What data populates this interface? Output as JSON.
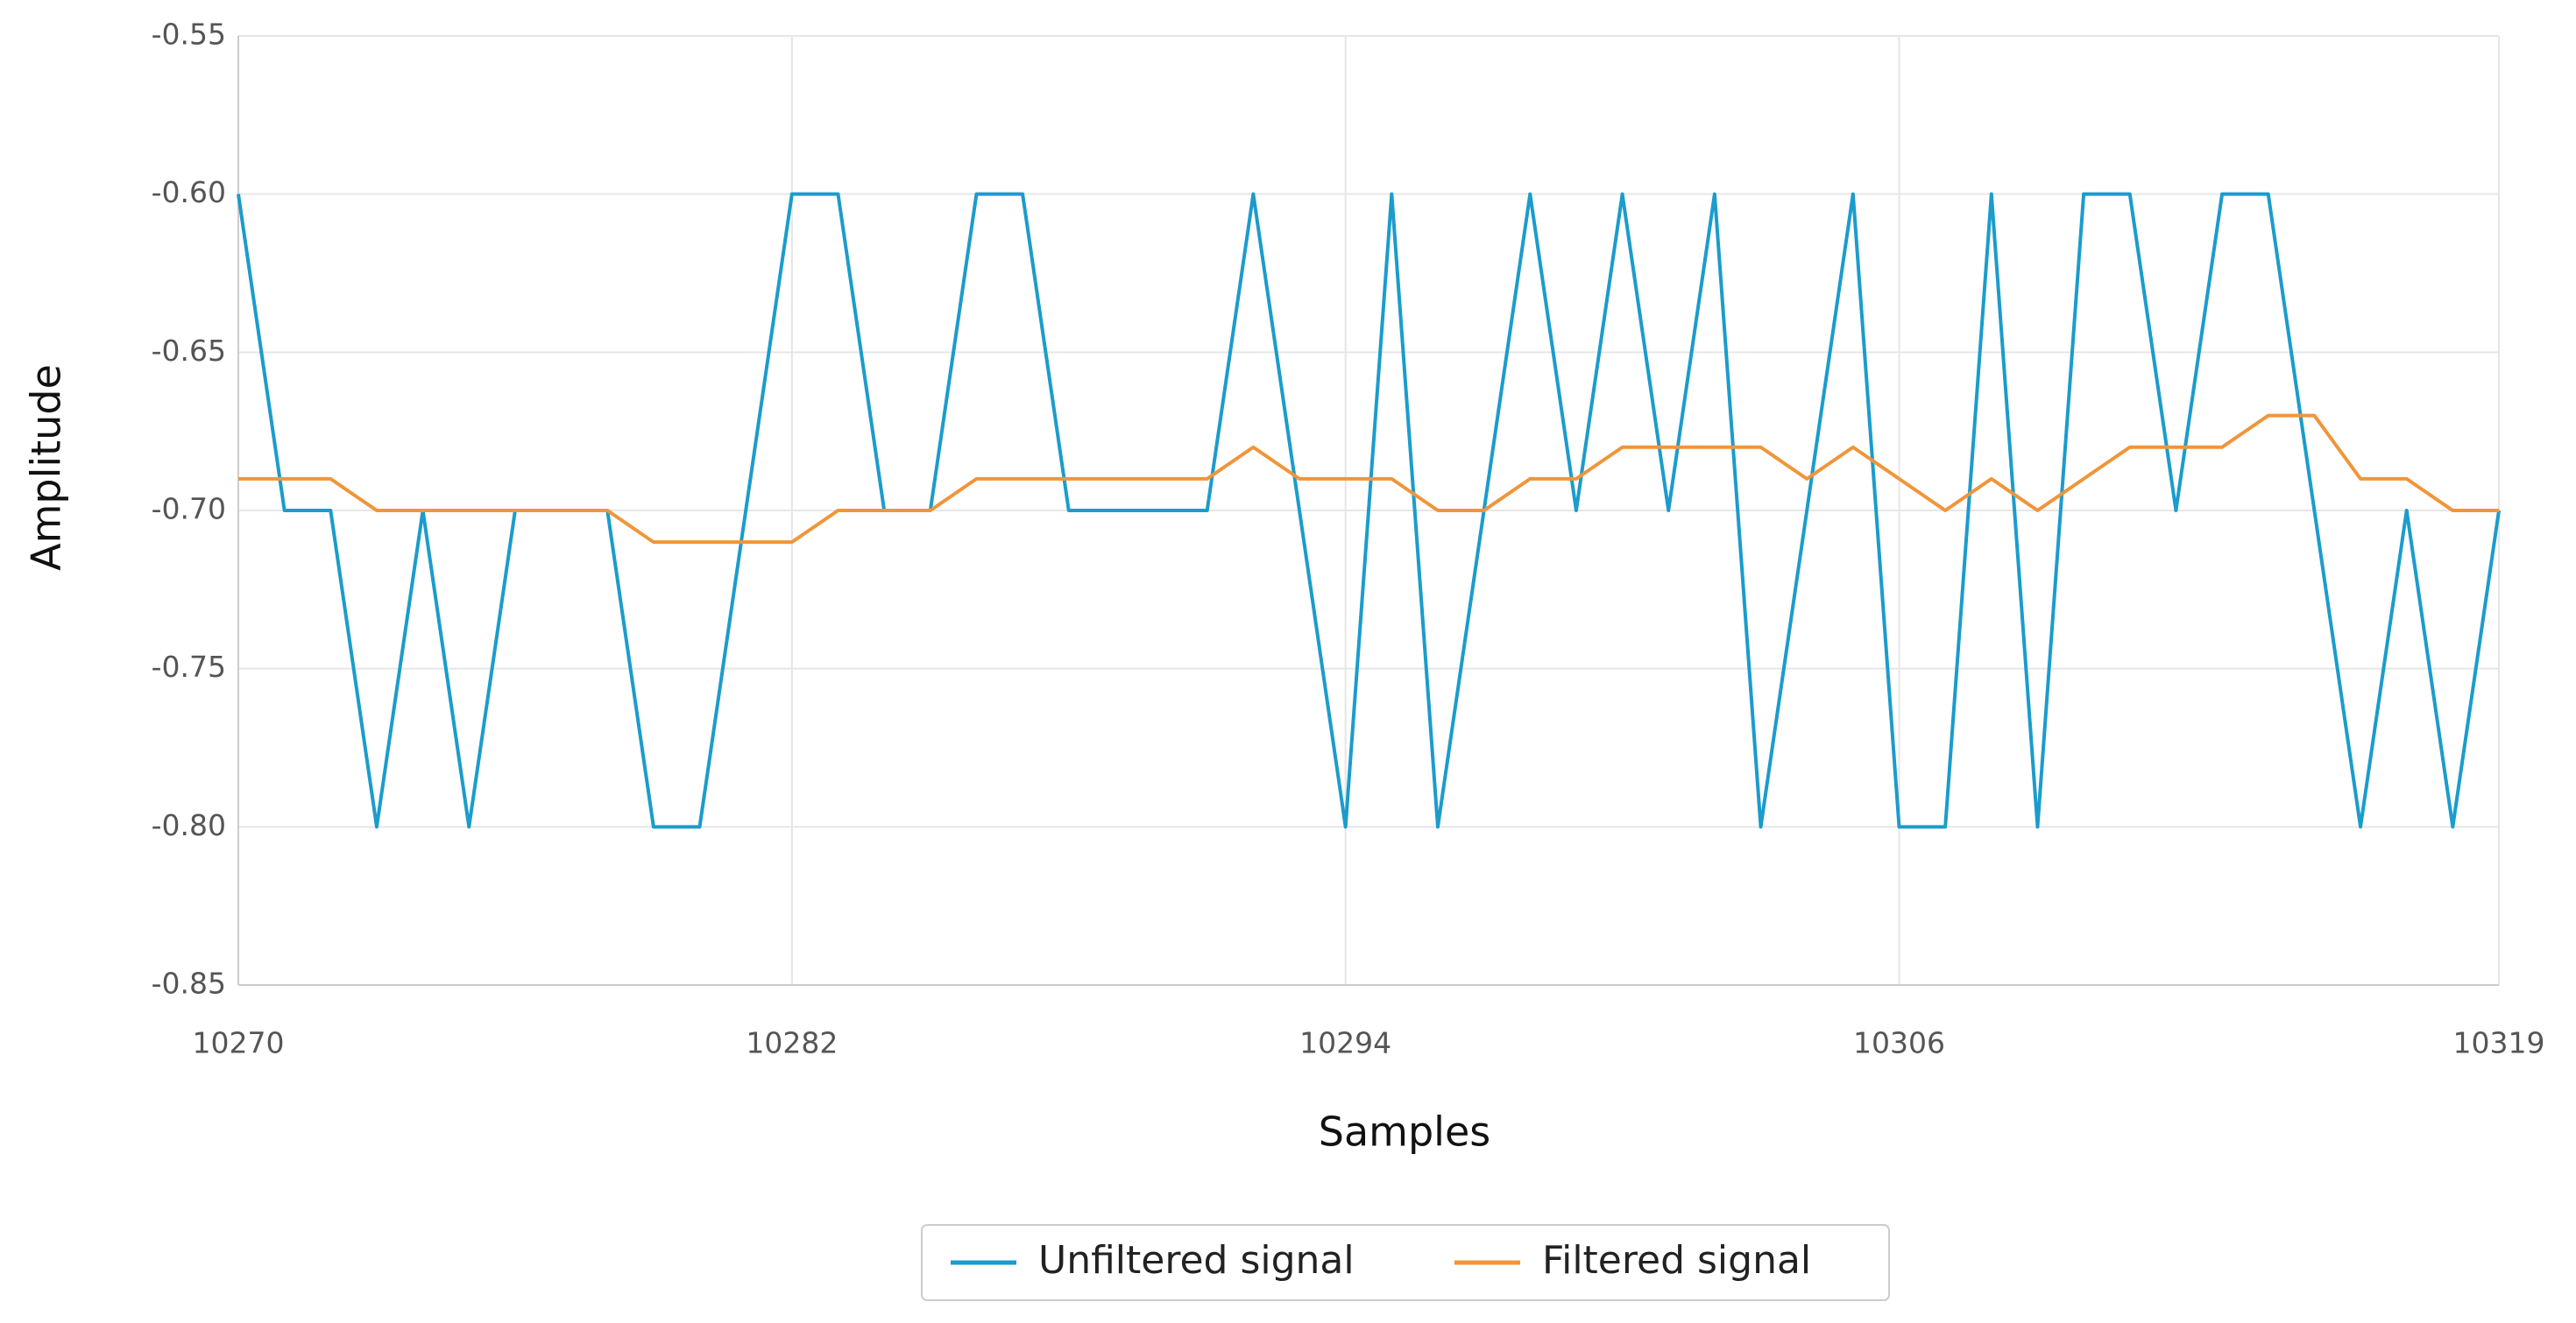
{
  "chart_data": {
    "type": "line",
    "x_label": "Samples",
    "y_label": "Amplitude",
    "x": [
      10270,
      10271,
      10272,
      10273,
      10274,
      10275,
      10276,
      10277,
      10278,
      10279,
      10280,
      10281,
      10282,
      10283,
      10284,
      10285,
      10286,
      10287,
      10288,
      10289,
      10290,
      10291,
      10292,
      10293,
      10294,
      10295,
      10296,
      10297,
      10298,
      10299,
      10300,
      10301,
      10302,
      10303,
      10304,
      10305,
      10306,
      10307,
      10308,
      10309,
      10310,
      10311,
      10312,
      10313,
      10314,
      10315,
      10316,
      10317,
      10318,
      10319
    ],
    "series": [
      {
        "name": "Unfiltered signal",
        "color": "#1b9ccc",
        "values": [
          -0.6,
          -0.7,
          -0.7,
          -0.8,
          -0.7,
          -0.8,
          -0.7,
          -0.7,
          -0.7,
          -0.8,
          -0.8,
          -0.7,
          -0.6,
          -0.6,
          -0.7,
          -0.7,
          -0.6,
          -0.6,
          -0.7,
          -0.7,
          -0.7,
          -0.7,
          -0.6,
          -0.7,
          -0.8,
          -0.6,
          -0.8,
          -0.7,
          -0.6,
          -0.7,
          -0.6,
          -0.7,
          -0.6,
          -0.8,
          -0.7,
          -0.6,
          -0.8,
          -0.8,
          -0.6,
          -0.8,
          -0.6,
          -0.6,
          -0.7,
          -0.6,
          -0.6,
          -0.7,
          -0.8,
          -0.7,
          -0.8,
          -0.7
        ]
      },
      {
        "name": "Filtered signal",
        "color": "#f0953a",
        "values": [
          -0.69,
          -0.69,
          -0.69,
          -0.7,
          -0.7,
          -0.7,
          -0.7,
          -0.7,
          -0.7,
          -0.71,
          -0.71,
          -0.71,
          -0.71,
          -0.7,
          -0.7,
          -0.7,
          -0.69,
          -0.69,
          -0.69,
          -0.69,
          -0.69,
          -0.69,
          -0.68,
          -0.69,
          -0.69,
          -0.69,
          -0.7,
          -0.7,
          -0.69,
          -0.69,
          -0.68,
          -0.68,
          -0.68,
          -0.68,
          -0.69,
          -0.68,
          -0.69,
          -0.7,
          -0.69,
          -0.7,
          -0.69,
          -0.68,
          -0.68,
          -0.68,
          -0.67,
          -0.67,
          -0.69,
          -0.69,
          -0.7,
          -0.7
        ]
      }
    ],
    "xlim": [
      10270,
      10319
    ],
    "xticks": [
      10270,
      10282,
      10294,
      10306,
      10319
    ],
    "ylim": [
      -0.85,
      -0.55
    ],
    "yticks": [
      -0.85,
      {
        "value": -0.8,
        "label": "-0.80"
      },
      -0.75,
      {
        "value": -0.7,
        "label": "-0.70"
      },
      -0.65,
      {
        "value": -0.6,
        "label": "-0.60"
      },
      -0.55
    ],
    "grid": true,
    "legend": "bottom"
  }
}
